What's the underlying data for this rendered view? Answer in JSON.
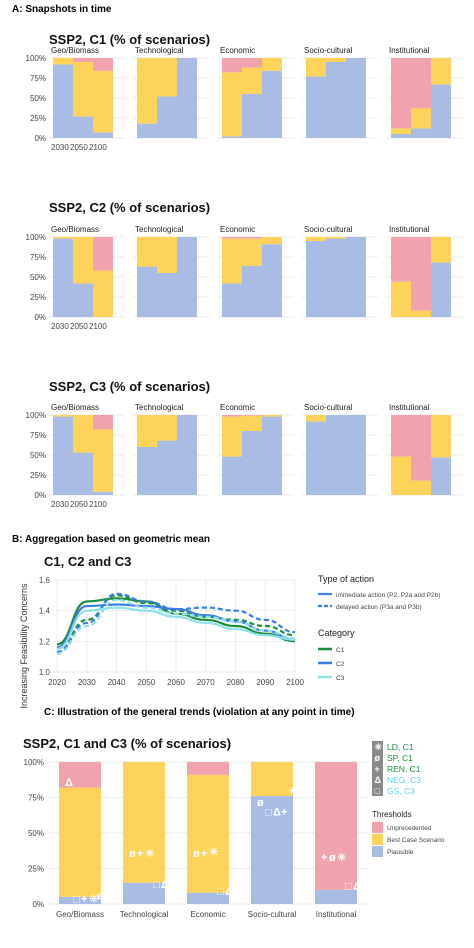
{
  "colors": {
    "unprecedented": "#f0a3ad",
    "best_case": "#fdd35a",
    "plausible": "#a9bde4",
    "grid": "#e4e4e4",
    "c1": "#1e8f3a",
    "c2": "#3a7ee6",
    "c3": "#8fe0e8",
    "shape_text": "#ffffff"
  },
  "section_a": {
    "header": "A: Snapshots in time",
    "years": [
      "2030",
      "2050",
      "2100"
    ],
    "y_ticks": [
      "0%",
      "25%",
      "50%",
      "75%",
      "100%"
    ]
  },
  "section_b": {
    "header": "B: Aggregation based on geometric mean",
    "title": "C1, C2 and C3",
    "ylabel": "Increasing Feasibility Concerns",
    "legend_action_title": "Type of action",
    "legend_action_items": [
      "immediate action (P2, P2a and P2b)",
      "delayed action (P3a and P3b)"
    ],
    "legend_category_title": "Category",
    "legend_category_items": [
      "C1",
      "C2",
      "C3"
    ]
  },
  "section_c": {
    "header": "C: Illustration of the general trends (violation at any point in time)",
    "title": "SSP2, C1 and C3 (% of scenarios)",
    "y_ticks": [
      "0%",
      "25%",
      "50%",
      "75%",
      "100%"
    ],
    "legend_markers": [
      {
        "symbol": "✳",
        "label": "LD, C1",
        "color": "#1e8f3a"
      },
      {
        "symbol": "ø",
        "label": "SP, C1",
        "color": "#1e8f3a"
      },
      {
        "symbol": "+",
        "label": "REN, C1",
        "color": "#1e8f3a"
      },
      {
        "symbol": "Δ",
        "label": "NEG, C3",
        "color": "#5fd3df"
      },
      {
        "symbol": "□",
        "label": "GS, C3",
        "color": "#5fd3df"
      }
    ],
    "thresholds_title": "Thresholds",
    "thresholds_items": [
      "Unprecedented",
      "Best Case Scenario",
      "Plausible"
    ]
  },
  "chart_data": [
    {
      "type": "bar",
      "stacked": true,
      "title": "SSP2, C1 (% of scenarios)",
      "panels": [
        "Geo/Biomass",
        "Technological",
        "Economic",
        "Socio-cultural",
        "Institutional"
      ],
      "categories": [
        "2030",
        "2050",
        "2100"
      ],
      "series": [
        {
          "name": "Plausible",
          "values": [
            [
              92,
              27,
              7
            ],
            [
              18,
              52,
              100
            ],
            [
              2,
              55,
              84
            ],
            [
              77,
              95,
              100
            ],
            [
              5,
              12,
              67
            ]
          ]
        },
        {
          "name": "Best Case Scenario",
          "values": [
            [
              8,
              68,
              77
            ],
            [
              82,
              48,
              0
            ],
            [
              80,
              33,
              16
            ],
            [
              23,
              5,
              0
            ],
            [
              7,
              25,
              33
            ]
          ]
        },
        {
          "name": "Unprecedented",
          "values": [
            [
              0,
              5,
              16
            ],
            [
              0,
              0,
              0
            ],
            [
              18,
              12,
              0
            ],
            [
              0,
              0,
              0
            ],
            [
              88,
              63,
              0
            ]
          ]
        }
      ],
      "ylim": [
        0,
        100
      ]
    },
    {
      "type": "bar",
      "stacked": true,
      "title": "SSP2, C2 (% of scenarios)",
      "panels": [
        "Geo/Biomass",
        "Technological",
        "Economic",
        "Socio-cultural",
        "Institutional"
      ],
      "categories": [
        "2030",
        "2050",
        "2100"
      ],
      "series": [
        {
          "name": "Plausible",
          "values": [
            [
              98,
              42,
              0
            ],
            [
              63,
              55,
              100
            ],
            [
              42,
              64,
              91
            ],
            [
              95,
              98,
              100
            ],
            [
              0,
              0,
              68
            ]
          ]
        },
        {
          "name": "Best Case Scenario",
          "values": [
            [
              2,
              58,
              58
            ],
            [
              37,
              45,
              0
            ],
            [
              56,
              34,
              9
            ],
            [
              5,
              2,
              0
            ],
            [
              44,
              8,
              32
            ]
          ]
        },
        {
          "name": "Unprecedented",
          "values": [
            [
              0,
              0,
              42
            ],
            [
              0,
              0,
              0
            ],
            [
              2,
              2,
              0
            ],
            [
              0,
              0,
              0
            ],
            [
              56,
              92,
              0
            ]
          ]
        }
      ],
      "ylim": [
        0,
        100
      ]
    },
    {
      "type": "bar",
      "stacked": true,
      "title": "SSP2, C3 (% of scenarios)",
      "panels": [
        "Geo/Biomass",
        "Technological",
        "Economic",
        "Socio-cultural",
        "Institutional"
      ],
      "categories": [
        "2030",
        "2050",
        "2100"
      ],
      "series": [
        {
          "name": "Plausible",
          "values": [
            [
              98,
              53,
              4
            ],
            [
              60,
              68,
              100
            ],
            [
              48,
              80,
              98
            ],
            [
              92,
              100,
              100
            ],
            [
              0,
              0,
              47
            ]
          ]
        },
        {
          "name": "Best Case Scenario",
          "values": [
            [
              2,
              47,
              78
            ],
            [
              40,
              32,
              0
            ],
            [
              50,
              19,
              2
            ],
            [
              8,
              0,
              0
            ],
            [
              48,
              18,
              53
            ]
          ]
        },
        {
          "name": "Unprecedented",
          "values": [
            [
              0,
              0,
              18
            ],
            [
              0,
              0,
              0
            ],
            [
              2,
              1,
              0
            ],
            [
              0,
              0,
              0
            ],
            [
              52,
              82,
              0
            ]
          ]
        }
      ],
      "ylim": [
        0,
        100
      ]
    },
    {
      "type": "line",
      "title": "C1, C2 and C3",
      "ylabel": "Increasing Feasibility Concerns",
      "xlim": [
        2020,
        2100
      ],
      "ylim": [
        1.0,
        1.6
      ],
      "x_ticks": [
        2020,
        2030,
        2040,
        2050,
        2060,
        2070,
        2080,
        2090,
        2100
      ],
      "y_ticks": [
        1.0,
        1.2,
        1.4,
        1.6
      ],
      "x": [
        2020,
        2030,
        2040,
        2050,
        2060,
        2070,
        2080,
        2090,
        2100
      ],
      "series": [
        {
          "name": "C1",
          "action": "immediate action (P2, P2a and P2b)",
          "values": [
            1.18,
            1.46,
            1.48,
            1.46,
            1.38,
            1.34,
            1.3,
            1.25,
            1.2
          ]
        },
        {
          "name": "C1",
          "action": "delayed action (P3a and P3b)",
          "values": [
            1.13,
            1.34,
            1.5,
            1.45,
            1.4,
            1.36,
            1.34,
            1.3,
            1.24
          ]
        },
        {
          "name": "C2",
          "action": "immediate action (P2, P2a and P2b)",
          "values": [
            1.16,
            1.43,
            1.44,
            1.43,
            1.41,
            1.37,
            1.33,
            1.27,
            1.21
          ]
        },
        {
          "name": "C2",
          "action": "delayed action (P3a and P3b)",
          "values": [
            1.13,
            1.32,
            1.51,
            1.46,
            1.41,
            1.42,
            1.4,
            1.34,
            1.26
          ]
        },
        {
          "name": "C3",
          "action": "immediate action (P2, P2a and P2b)",
          "values": [
            1.15,
            1.4,
            1.42,
            1.4,
            1.36,
            1.32,
            1.28,
            1.24,
            1.21
          ]
        },
        {
          "name": "C3",
          "action": "delayed action (P3a and P3b)",
          "values": [
            1.12,
            1.3,
            1.47,
            1.42,
            1.38,
            1.36,
            1.33,
            1.27,
            1.22
          ]
        }
      ]
    },
    {
      "type": "bar",
      "stacked": true,
      "title": "SSP2, C1 and C3 (% of scenarios)",
      "categories": [
        "Geo/Biomass",
        "Technological",
        "Economic",
        "Socio-cultural",
        "Institutional"
      ],
      "series": [
        {
          "name": "Plausible",
          "values": [
            5,
            15,
            8,
            76,
            10
          ]
        },
        {
          "name": "Best Case Scenario",
          "values": [
            77,
            85,
            83,
            24,
            0
          ]
        },
        {
          "name": "Unprecedented",
          "values": [
            18,
            0,
            9,
            0,
            90
          ]
        }
      ],
      "markers": [
        {
          "category": "Geo/Biomass",
          "items": [
            {
              "label": "NEG, C3",
              "value": 86
            },
            {
              "label": "GS, C3",
              "value": 4
            },
            {
              "label": "REN, C1",
              "value": 4
            },
            {
              "label": "LD, C1",
              "value": 4
            },
            {
              "label": "SP, C1",
              "value": 6
            }
          ]
        },
        {
          "category": "Technological",
          "items": [
            {
              "label": "SP, C1",
              "value": 36
            },
            {
              "label": "REN, C1",
              "value": 36
            },
            {
              "label": "LD, C1",
              "value": 36
            },
            {
              "label": "GS, C3",
              "value": 14
            },
            {
              "label": "NEG, C3",
              "value": 14
            }
          ]
        },
        {
          "category": "Economic",
          "items": [
            {
              "label": "SP, C1",
              "value": 36
            },
            {
              "label": "REN, C1",
              "value": 36
            },
            {
              "label": "LD, C1",
              "value": 37
            },
            {
              "label": "GS, C3",
              "value": 9
            },
            {
              "label": "NEG, C3",
              "value": 9
            }
          ]
        },
        {
          "category": "Socio-cultural",
          "items": [
            {
              "label": "SP, C1",
              "value": 72
            },
            {
              "label": "GS, C3",
              "value": 65
            },
            {
              "label": "NEG, C3",
              "value": 65
            },
            {
              "label": "REN, C1",
              "value": 65
            },
            {
              "label": "LD, C1",
              "value": 80
            }
          ]
        },
        {
          "category": "Institutional",
          "items": [
            {
              "label": "REN, C1",
              "value": 33
            },
            {
              "label": "SP, C1",
              "value": 33
            },
            {
              "label": "LD, C1",
              "value": 33
            },
            {
              "label": "GS, C3",
              "value": 13
            },
            {
              "label": "NEG, C3",
              "value": 13
            }
          ]
        }
      ],
      "ylim": [
        0,
        100
      ]
    }
  ]
}
